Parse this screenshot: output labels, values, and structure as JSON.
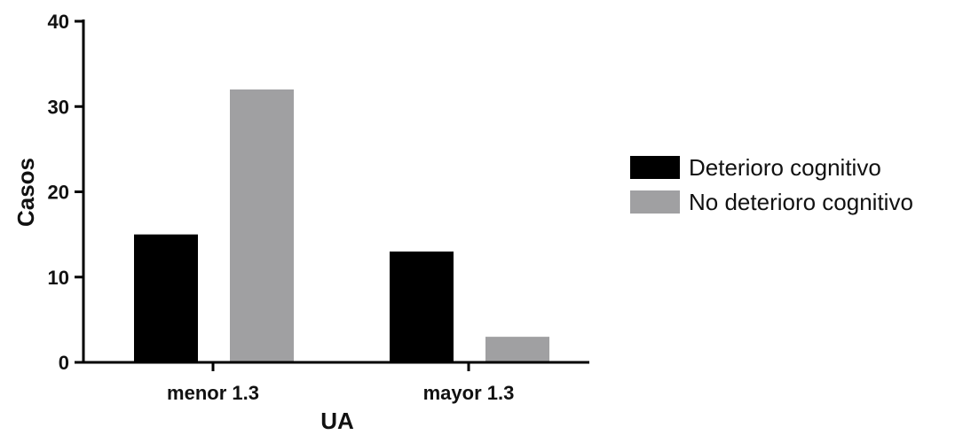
{
  "chart_data": {
    "type": "bar",
    "categories": [
      "menor 1.3",
      "mayor 1.3"
    ],
    "series": [
      {
        "name": "Deterioro cognitivo",
        "values": [
          15,
          13
        ],
        "color": "#000000"
      },
      {
        "name": "No deterioro cognitivo",
        "values": [
          32,
          3
        ],
        "color": "#a0a0a2"
      }
    ],
    "xlabel": "UA",
    "ylabel": "Casos",
    "ylim": [
      0,
      40
    ],
    "yticks": [
      0,
      10,
      20,
      30,
      40
    ],
    "grid": false,
    "legend_position": "right"
  }
}
